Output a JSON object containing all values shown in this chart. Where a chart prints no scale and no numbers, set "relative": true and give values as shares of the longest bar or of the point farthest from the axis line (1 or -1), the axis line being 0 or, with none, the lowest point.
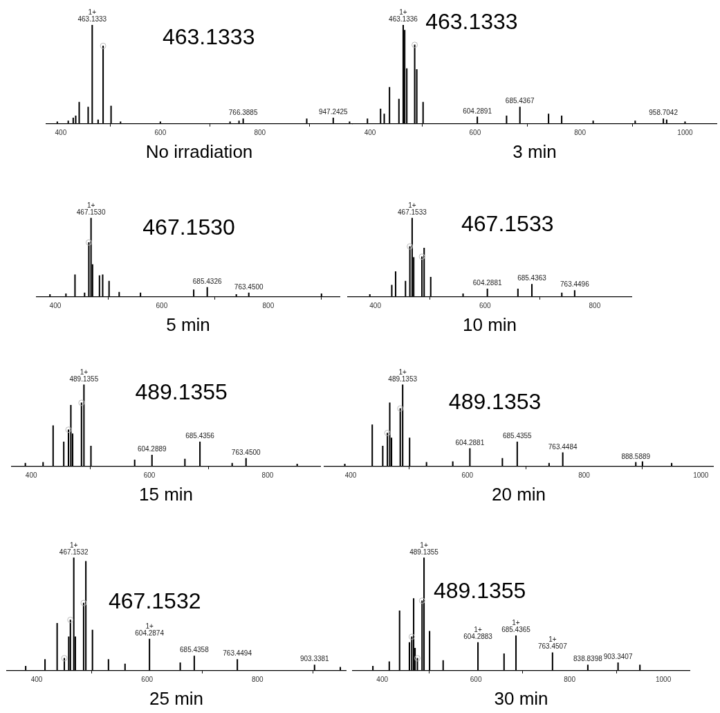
{
  "chart_data": [
    {
      "type": "bar",
      "relative": true,
      "title": "463.1333",
      "xlabel": "No irradiation",
      "xlim": [
        371,
        985
      ],
      "xticks": [
        400,
        600,
        800
      ],
      "series": [
        {
          "color": "#000000",
          "x": [
            393,
            415,
            425,
            430,
            437,
            455,
            463.1333,
            475,
            485,
            501,
            520,
            600,
            740,
            758,
            766.3885,
            894,
            947.2425,
            980
          ],
          "values": [
            0.02,
            0.03,
            0.06,
            0.08,
            0.22,
            0.17,
            1,
            0.04,
            0.79,
            0.18,
            0.02,
            0.02,
            0.02,
            0.03,
            0.05,
            0.05,
            0.06,
            0.02
          ]
        },
        {
          "type": "scatter",
          "color": "#bbbbbb",
          "marker": "circle",
          "x": [
            485
          ],
          "values": [
            0.79
          ]
        }
      ],
      "annotations": [
        {
          "text": "1+\n463.1333",
          "x": 463.1333,
          "y": 1
        },
        {
          "text": "766.3885",
          "x": 766.3885,
          "y": 0.05
        },
        {
          "text": "947.2425",
          "x": 947.2425,
          "y": 0.06
        }
      ]
    },
    {
      "type": "bar",
      "relative": true,
      "title": "463.1333",
      "xlabel": "3 min",
      "xlim": [
        367,
        1060
      ],
      "xticks": [
        400,
        600,
        800,
        1000
      ],
      "series": [
        {
          "color": "#000000",
          "x": [
            395,
            420,
            427,
            437,
            455,
            463.1336,
            466,
            470,
            485,
            489,
            501,
            604.2891,
            660,
            685.4367,
            740,
            765,
            825,
            905,
            958.7042,
            965,
            1000
          ],
          "values": [
            0.05,
            0.15,
            0.1,
            0.37,
            0.25,
            1,
            0.95,
            0.56,
            0.8,
            0.55,
            0.22,
            0.07,
            0.08,
            0.17,
            0.1,
            0.08,
            0.03,
            0.03,
            0.05,
            0.04,
            0.02
          ]
        },
        {
          "type": "scatter",
          "color": "#bbbbbb",
          "marker": "circle",
          "x": [
            485
          ],
          "values": [
            0.8
          ]
        }
      ],
      "annotations": [
        {
          "text": "1+\n463.1336",
          "x": 463.1336,
          "y": 1
        },
        {
          "text": "604.2891",
          "x": 604.2891,
          "y": 0.07
        },
        {
          "text": "685.4367",
          "x": 685.4367,
          "y": 0.17
        },
        {
          "text": "958.7042",
          "x": 958.7042,
          "y": 0.05
        }
      ]
    },
    {
      "type": "bar",
      "relative": true,
      "title": "467.1530",
      "xlabel": "5 min",
      "xlim": [
        365,
        934
      ],
      "xticks": [
        400,
        600,
        800
      ],
      "series": [
        {
          "color": "#000000",
          "x": [
            390,
            420,
            437,
            455,
            463,
            467.153,
            470,
            483,
            489,
            501,
            520,
            560,
            660,
            685.4326,
            740,
            763.45,
            900
          ],
          "values": [
            0.03,
            0.04,
            0.28,
            0.05,
            0.69,
            1,
            0.41,
            0.27,
            0.28,
            0.2,
            0.06,
            0.05,
            0.09,
            0.12,
            0.03,
            0.05,
            0.04
          ]
        },
        {
          "type": "scatter",
          "color": "#bbbbbb",
          "marker": "circle",
          "x": [
            463
          ],
          "values": [
            0.69
          ]
        }
      ],
      "annotations": [
        {
          "text": "1+\n467.1530",
          "x": 467.153,
          "y": 1
        },
        {
          "text": "685.4326",
          "x": 685.4326,
          "y": 0.12
        },
        {
          "text": "763.4500",
          "x": 763.45,
          "y": 0.05
        }
      ]
    },
    {
      "type": "bar",
      "relative": true,
      "title": "467.1533",
      "xlabel": "10 min",
      "xlim": [
        350,
        867
      ],
      "xticks": [
        400,
        600,
        800
      ],
      "series": [
        {
          "color": "#000000",
          "x": [
            390,
            430,
            437,
            455,
            463,
            467.1533,
            470,
            485,
            489,
            501,
            560,
            604.2881,
            660,
            685.4363,
            740,
            763.4496
          ],
          "values": [
            0.03,
            0.15,
            0.32,
            0.2,
            0.64,
            1,
            0.5,
            0.51,
            0.62,
            0.25,
            0.04,
            0.1,
            0.1,
            0.16,
            0.05,
            0.08
          ]
        },
        {
          "type": "scatter",
          "color": "#bbbbbb",
          "marker": "circle",
          "x": [
            463,
            485
          ],
          "values": [
            0.64,
            0.51
          ]
        }
      ],
      "annotations": [
        {
          "text": "1+\n467.1533",
          "x": 467.1533,
          "y": 1
        },
        {
          "text": "604.2881",
          "x": 604.2881,
          "y": 0.1
        },
        {
          "text": "685.4363",
          "x": 685.4363,
          "y": 0.16
        },
        {
          "text": "763.4496",
          "x": 763.4496,
          "y": 0.08
        }
      ]
    },
    {
      "type": "bar",
      "relative": true,
      "title": "489.1355",
      "xlabel": "15 min",
      "xlim": [
        367,
        889
      ],
      "xticks": [
        400,
        600,
        800
      ],
      "series": [
        {
          "color": "#000000",
          "x": [
            390,
            420,
            437,
            455,
            463,
            467,
            470,
            485,
            489.1355,
            501,
            575,
            604.2889,
            660,
            685.4356,
            740,
            763.45,
            850
          ],
          "values": [
            0.04,
            0.05,
            0.5,
            0.3,
            0.45,
            0.75,
            0.4,
            0.78,
            1,
            0.25,
            0.08,
            0.14,
            0.09,
            0.3,
            0.04,
            0.1,
            0.03
          ]
        },
        {
          "type": "scatter",
          "color": "#bbbbbb",
          "marker": "circle",
          "x": [
            463,
            485
          ],
          "values": [
            0.45,
            0.78
          ]
        }
      ],
      "annotations": [
        {
          "text": "1+\n489.1355",
          "x": 489.1355,
          "y": 1
        },
        {
          "text": "604.2889",
          "x": 604.2889,
          "y": 0.14
        },
        {
          "text": "685.4356",
          "x": 685.4356,
          "y": 0.3
        },
        {
          "text": "763.4500",
          "x": 763.45,
          "y": 0.1
        }
      ]
    },
    {
      "type": "bar",
      "relative": true,
      "title": "489.1353",
      "xlabel": "20 min",
      "xlim": [
        355,
        1021
      ],
      "xticks": [
        400,
        600,
        800,
        1000
      ],
      "series": [
        {
          "color": "#000000",
          "x": [
            390,
            437,
            455,
            463,
            467,
            470,
            485,
            489.1353,
            501,
            530,
            575,
            604.2881,
            660,
            685.4355,
            740,
            763.4484,
            888.5889,
            900,
            950
          ],
          "values": [
            0.03,
            0.51,
            0.25,
            0.41,
            0.78,
            0.35,
            0.71,
            1,
            0.35,
            0.05,
            0.06,
            0.22,
            0.1,
            0.3,
            0.04,
            0.17,
            0.05,
            0.06,
            0.04
          ]
        },
        {
          "type": "scatter",
          "color": "#bbbbbb",
          "marker": "circle",
          "x": [
            463,
            485
          ],
          "values": [
            0.41,
            0.71
          ]
        }
      ],
      "annotations": [
        {
          "text": "1+\n489.1353",
          "x": 489.1353,
          "y": 1
        },
        {
          "text": "604.2881",
          "x": 604.2881,
          "y": 0.22
        },
        {
          "text": "685.4355",
          "x": 685.4355,
          "y": 0.3
        },
        {
          "text": "763.4484",
          "x": 763.4484,
          "y": 0.17
        },
        {
          "text": "888.5889",
          "x": 888.5889,
          "y": 0.05
        }
      ]
    },
    {
      "type": "bar",
      "relative": true,
      "title": "467.1532",
      "xlabel": "25 min",
      "xlim": [
        346,
        960
      ],
      "xticks": [
        400,
        600,
        800
      ],
      "series": [
        {
          "color": "#000000",
          "x": [
            380,
            415,
            437,
            450,
            458,
            461,
            467.1532,
            470,
            485,
            489,
            501,
            530,
            560,
            604.2874,
            660,
            685.4358,
            763.4494,
            903.3381,
            950
          ],
          "values": [
            0.04,
            0.1,
            0.42,
            0.11,
            0.3,
            0.45,
            1,
            0.3,
            0.6,
            0.97,
            0.36,
            0.1,
            0.06,
            0.28,
            0.07,
            0.13,
            0.1,
            0.05,
            0.03
          ]
        },
        {
          "type": "scatter",
          "color": "#bbbbbb",
          "marker": "circle",
          "x": [
            450,
            461,
            485
          ],
          "values": [
            0.11,
            0.45,
            0.6
          ]
        }
      ],
      "annotations": [
        {
          "text": "1+\n467.1532",
          "x": 467.1532,
          "y": 1
        },
        {
          "text": "1+\n604.2874",
          "x": 604.2874,
          "y": 0.28
        },
        {
          "text": "685.4358",
          "x": 685.4358,
          "y": 0.13
        },
        {
          "text": "763.4494",
          "x": 763.4494,
          "y": 0.1
        },
        {
          "text": "903.3381",
          "x": 903.3381,
          "y": 0.05
        }
      ]
    },
    {
      "type": "bar",
      "relative": true,
      "title": "489.1355",
      "xlabel": "30 min",
      "xlim": [
        337,
        1056
      ],
      "xticks": [
        400,
        600,
        800,
        1000
      ],
      "series": [
        {
          "color": "#000000",
          "x": [
            380,
            415,
            437,
            458,
            463,
            467,
            470,
            475,
            485,
            489.1355,
            501,
            530,
            604.2883,
            660,
            685.4365,
            763.4507,
            838.8398,
            903.3407,
            950
          ],
          "values": [
            0.04,
            0.08,
            0.53,
            0.25,
            0.3,
            0.64,
            0.2,
            0.11,
            0.62,
            1,
            0.35,
            0.09,
            0.25,
            0.15,
            0.31,
            0.16,
            0.05,
            0.07,
            0.05
          ]
        },
        {
          "type": "scatter",
          "color": "#bbbbbb",
          "marker": "circle",
          "x": [
            463,
            475,
            485
          ],
          "values": [
            0.3,
            0.11,
            0.62
          ]
        }
      ],
      "annotations": [
        {
          "text": "1+\n489.1355",
          "x": 489.1355,
          "y": 1
        },
        {
          "text": "1+\n604.2883",
          "x": 604.2883,
          "y": 0.25
        },
        {
          "text": "1+\n685.4365",
          "x": 685.4365,
          "y": 0.31
        },
        {
          "text": "1+\n763.4507",
          "x": 763.4507,
          "y": 0.16
        },
        {
          "text": "838.8398",
          "x": 838.8398,
          "y": 0.05
        },
        {
          "text": "903.3407",
          "x": 903.3407,
          "y": 0.07
        }
      ]
    }
  ]
}
